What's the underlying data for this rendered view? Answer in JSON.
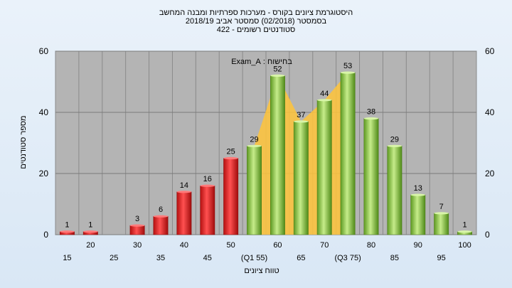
{
  "header": {
    "line1": "היסטוגרמת ציונים בקורס - מערכות ספרתיות ומבנה המחשב",
    "line2": "בסמסטר  (02/2018)  סמסטר אביב 2018/19",
    "line3": "סטודנטים רשומים - 422"
  },
  "chart_data": {
    "type": "bar",
    "title": "",
    "xlabel": "טווח ציונים",
    "ylabel": "מספר סטודנטים",
    "ylim": [
      0,
      60
    ],
    "yticks": [
      0,
      20,
      40,
      60
    ],
    "annotation": "בחישוח : Exam_A",
    "categories": [
      "15",
      "20",
      "25",
      "30",
      "35",
      "40",
      "45",
      "50",
      "55",
      "60",
      "65",
      "70",
      "75",
      "80",
      "85",
      "90",
      "95",
      "100"
    ],
    "x_tick_labels": [
      "15",
      "20",
      "25",
      "30",
      "35",
      "40",
      "45",
      "50",
      "(Q1 55)",
      "60",
      "65",
      "70",
      "(Q3 75)",
      "80",
      "85",
      "90",
      "95",
      "100"
    ],
    "values": [
      1,
      1,
      0,
      3,
      6,
      14,
      16,
      25,
      29,
      52,
      37,
      44,
      53,
      38,
      29,
      13,
      7,
      1
    ],
    "value_labels": [
      "1",
      "1",
      "",
      "3",
      "6",
      "14",
      "16",
      "25",
      "29",
      "52",
      "37",
      "44",
      "53",
      "38",
      "29",
      "13",
      "7",
      "1"
    ],
    "bar_colors": {
      "fail": "#e02020",
      "pass": "#8ec63f"
    },
    "fail_threshold_categories": [
      "15",
      "20",
      "25",
      "30",
      "35",
      "40",
      "45",
      "50"
    ],
    "interquartile_area": {
      "from": "55",
      "to": "75",
      "color": "#ffc43a"
    },
    "grid": true,
    "plot_background": "#b4b4b4"
  }
}
